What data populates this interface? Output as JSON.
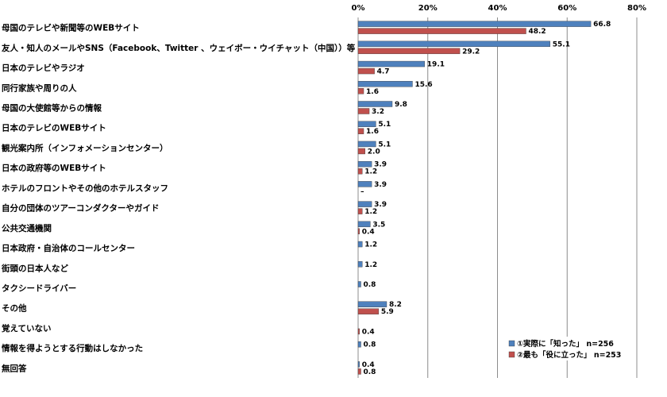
{
  "chart_data": {
    "type": "bar",
    "orientation": "horizontal",
    "categories": [
      "母国のテレビや新聞等のWEBサイト",
      "友人・知人のメールやSNS（Facebook、Twitter 、ウェイボー・ウイチャット（中国））等",
      "日本のテレビやラジオ",
      "同行家族や周りの人",
      "母国の大使館等からの情報",
      "日本のテレビのWEBサイト",
      "観光案内所（インフォメーションセンター）",
      "日本の政府等のWEBサイト",
      "ホテルのフロントやその他のホテルスタッフ",
      "自分の団体のツアーコンダクターやガイド",
      "公共交通機関",
      "日本政府・自治体のコールセンター",
      "街頭の日本人など",
      "タクシードライバー",
      "その他",
      "覚えていない",
      "情報を得ようとする行動はしなかった",
      "無回答"
    ],
    "series": [
      {
        "name": "①実際に「知った」 n=256",
        "color": "#4f81bd",
        "values": [
          66.8,
          55.1,
          19.1,
          15.6,
          9.8,
          5.1,
          5.1,
          3.9,
          3.9,
          3.9,
          3.5,
          1.2,
          1.2,
          0.8,
          8.2,
          null,
          0.8,
          0.4
        ],
        "labels": [
          "66.8",
          "55.1",
          "19.1",
          "15.6",
          "9.8",
          "5.1",
          "5.1",
          "3.9",
          "3.9",
          "3.9",
          "3.5",
          "1.2",
          "1.2",
          "0.8",
          "8.2",
          "",
          "0.8",
          "0.4"
        ]
      },
      {
        "name": "②最も「役に立った」 n=253",
        "color": "#c0504d",
        "values": [
          48.2,
          29.2,
          4.7,
          1.6,
          3.2,
          1.6,
          2.0,
          1.2,
          0,
          1.2,
          0.4,
          0,
          0,
          0,
          5.9,
          0.4,
          0,
          0.8
        ],
        "labels": [
          "48.2",
          "29.2",
          "4.7",
          "1.6",
          "3.2",
          "1.6",
          "2.0",
          "1.2",
          "–",
          "1.2",
          "0.4",
          "",
          "",
          "",
          "5.9",
          "0.4",
          "",
          "0.8"
        ]
      }
    ],
    "xlim": [
      0,
      80
    ],
    "xticks": [
      "0%",
      "20%",
      "40%",
      "60%",
      "80%"
    ],
    "xtick_values": [
      0,
      20,
      40,
      60,
      80
    ],
    "grid": true,
    "legend_position": "bottom-right",
    "title": "",
    "xlabel": "",
    "ylabel": ""
  }
}
